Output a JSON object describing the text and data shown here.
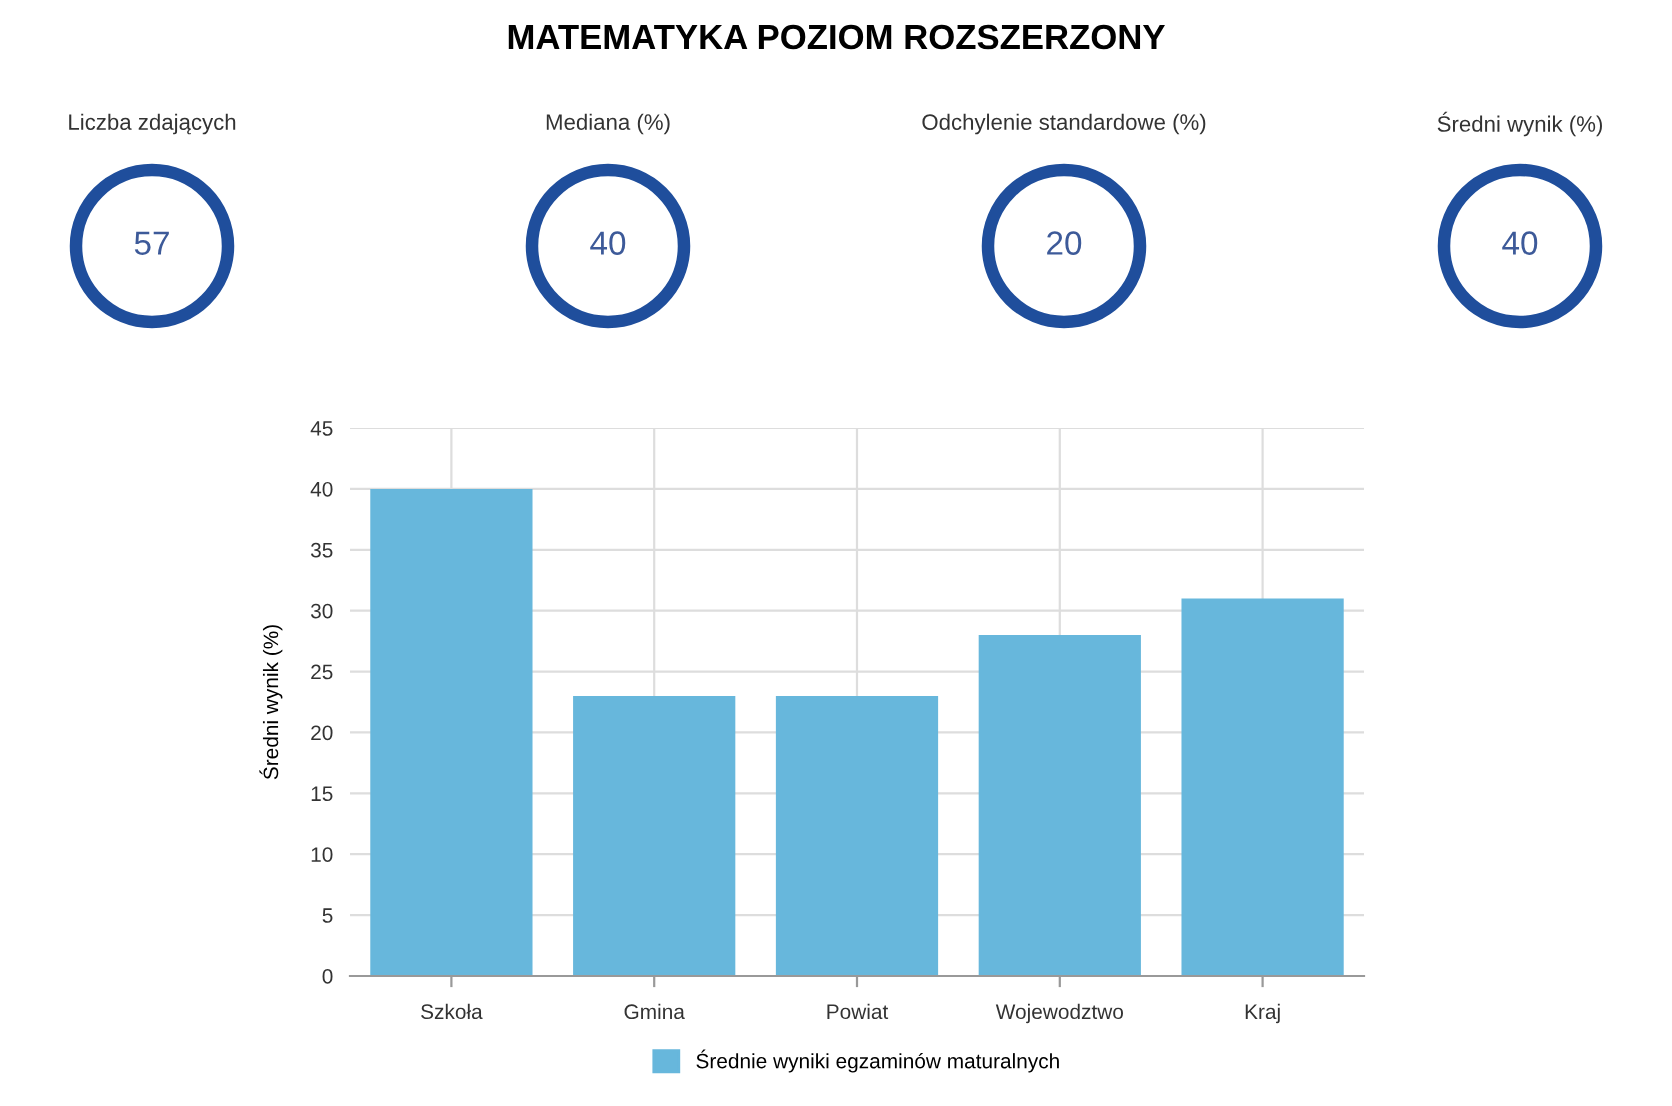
{
  "chart_data": [
    {
      "type": "other",
      "title": "MATEMATYKA POZIOM ROZSZERZONY",
      "categories": [
        "Liczba zdających",
        "Mediana (%)",
        "Odchylenie standardowe (%)",
        "Średni wynik (%)"
      ],
      "values": [
        57,
        40,
        20,
        40
      ],
      "data_labels": true,
      "color": "#1f4e9c"
    },
    {
      "type": "bar",
      "ylabel": "Średni wynik (%)",
      "categories": [
        "Szkoła",
        "Gmina",
        "Powiat",
        "Wojewodztwo",
        "Kraj"
      ],
      "series": [
        {
          "name": "Średnie wyniki egzaminów maturalnych",
          "color": "#67b7dc",
          "values": [
            40,
            23,
            23,
            28,
            31
          ]
        }
      ],
      "ylim": [
        0,
        45
      ],
      "yticks": [
        0,
        5,
        10,
        15,
        20,
        25,
        30,
        35,
        40,
        45
      ],
      "grid": true,
      "legend": "bottom"
    }
  ]
}
